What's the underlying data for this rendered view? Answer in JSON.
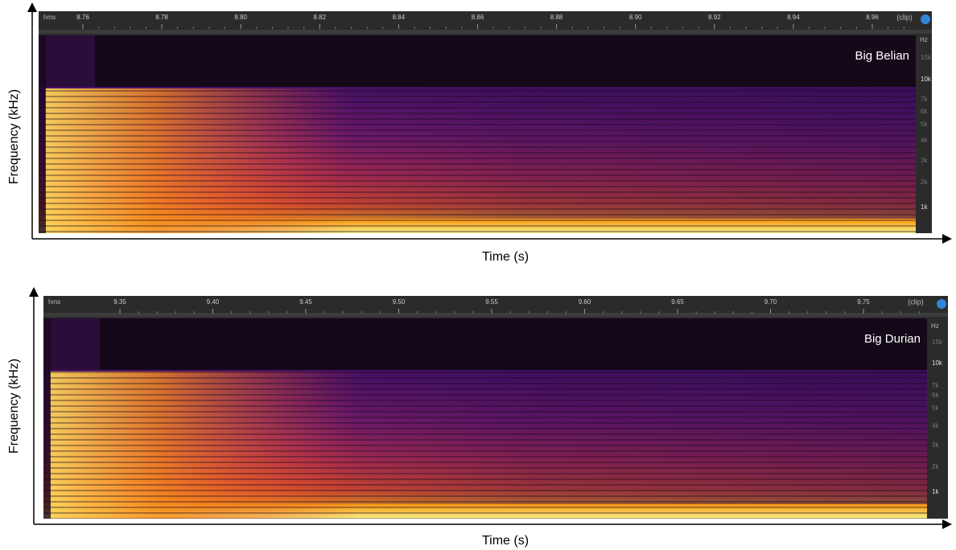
{
  "panels": [
    {
      "label": "Big Belian",
      "x_axis_label": "Time (s)",
      "y_axis_label": "Frequency (kHz)",
      "ruler_unit": "hms",
      "ruler_end": "(clip)",
      "ruler_ticks": [
        "8.76",
        "8.78",
        "8.80",
        "8.82",
        "8.84",
        "8.86",
        "8.88",
        "8.90",
        "8.92",
        "8.94",
        "8.96"
      ],
      "hz_unit": "Hz",
      "hz_ticks": [
        "15k",
        "10k",
        "7k",
        "6k",
        "5k",
        "4k",
        "3k",
        "2k",
        "1k"
      ]
    },
    {
      "label": "Big Durian",
      "x_axis_label": "Time (s)",
      "y_axis_label": "Frequency (kHz)",
      "ruler_unit": "hms",
      "ruler_end": "(clip)",
      "ruler_ticks": [
        "9.35",
        "9.40",
        "9.45",
        "9.50",
        "9.55",
        "9.60",
        "9.65",
        "9.70",
        "9.75"
      ],
      "hz_unit": "Hz",
      "hz_ticks": [
        "15k",
        "10k",
        "7k",
        "6k",
        "5k",
        "4k",
        "3k",
        "2k",
        "1k"
      ]
    }
  ]
}
